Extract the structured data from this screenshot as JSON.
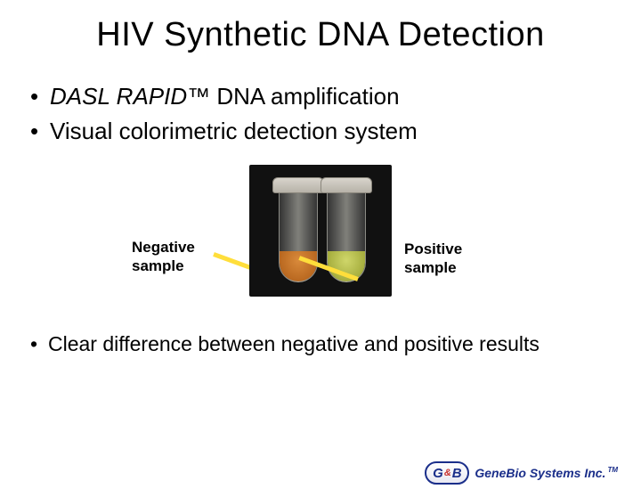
{
  "title": "HIV Synthetic DNA Detection",
  "bullet1_prefix_italic": "DASL RAPID",
  "bullet1_tm": "™",
  "bullet1_rest": " DNA amplification",
  "bullet2": "Visual colorimetric detection system",
  "neg_label_line1": "Negative",
  "neg_label_line2": "sample",
  "pos_label_line1": "Positive",
  "pos_label_line2": "sample",
  "bottom_bullet": "Clear difference between negative and positive results",
  "logo_g": "G",
  "logo_amp": "&",
  "logo_b": "B",
  "logo_text": "GeneBio Systems Inc.",
  "logo_tm": "TM",
  "colors": {
    "pointer": "#ffde3b",
    "negative_liquid": "#b96820",
    "positive_liquid": "#a6ae3e",
    "photo_bg": "#111111",
    "logo_blue": "#1a2e8a"
  }
}
